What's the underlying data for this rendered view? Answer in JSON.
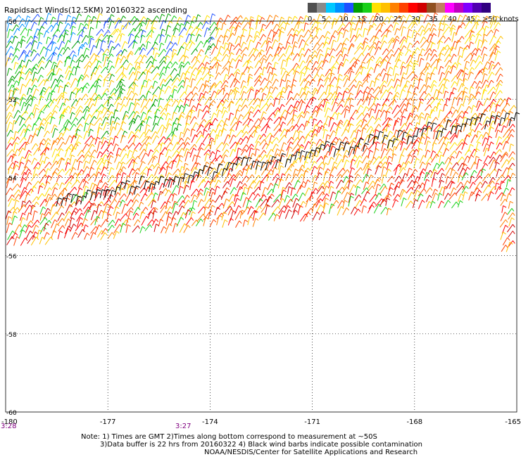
{
  "title": "Rapidsact Winds(12.5KM) 20160322 ascending",
  "scale": {
    "colors": [
      "#505050",
      "#8a8a8a",
      "#00c8ff",
      "#0090ff",
      "#2050ff",
      "#00a000",
      "#18d018",
      "#ffe000",
      "#ffc000",
      "#ff8000",
      "#ff4000",
      "#ff0000",
      "#d00000",
      "#905020",
      "#c08060",
      "#ff00ff",
      "#c000c0",
      "#8000ff",
      "#5000b0",
      "#300080"
    ],
    "tick_labels": [
      "0",
      "5",
      "10",
      "15",
      "20",
      "25",
      "30",
      "35",
      "40",
      "45",
      ">50 knots"
    ]
  },
  "axes": {
    "lat_labels": [
      "-50",
      "-52",
      "-54",
      "-56",
      "-58",
      "-60"
    ],
    "lon_labels": [
      "-180",
      "-177",
      "-174",
      "-171",
      "-168",
      "-165"
    ],
    "lon_range": [
      -180,
      -165
    ],
    "lat_range": [
      -60,
      -50
    ]
  },
  "times": [
    "3:28",
    "3:27"
  ],
  "notes": {
    "line1": "Note: 1) Times are GMT 2)Times along bottom correspond to measurement at ~50S",
    "line2": "3)Data buffer is 22 hrs from 20160322 4) Black wind barbs indicate possible contamination",
    "line3": "NOAA/NESDIS/Center for Satellite Applications and Research"
  }
}
